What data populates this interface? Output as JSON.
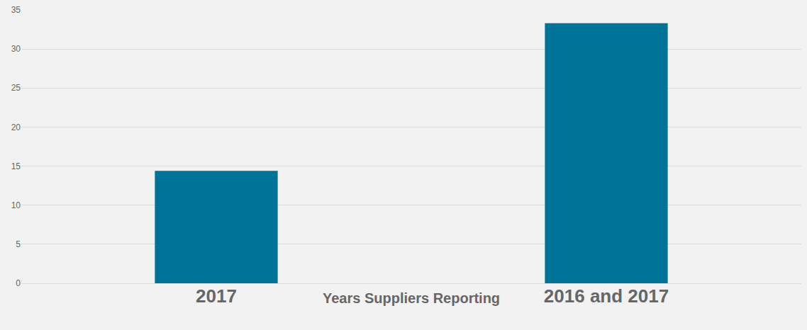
{
  "chart_data": {
    "type": "bar",
    "x_label": "Years Suppliers Reporting",
    "categories": [
      "2017",
      "2016 and 2017"
    ],
    "values": [
      14.4,
      33.3
    ],
    "color": "#007398",
    "ylim": [
      0,
      35
    ],
    "yticks": [
      0,
      5,
      10,
      15,
      20,
      25,
      30,
      35
    ],
    "grid": true
  }
}
